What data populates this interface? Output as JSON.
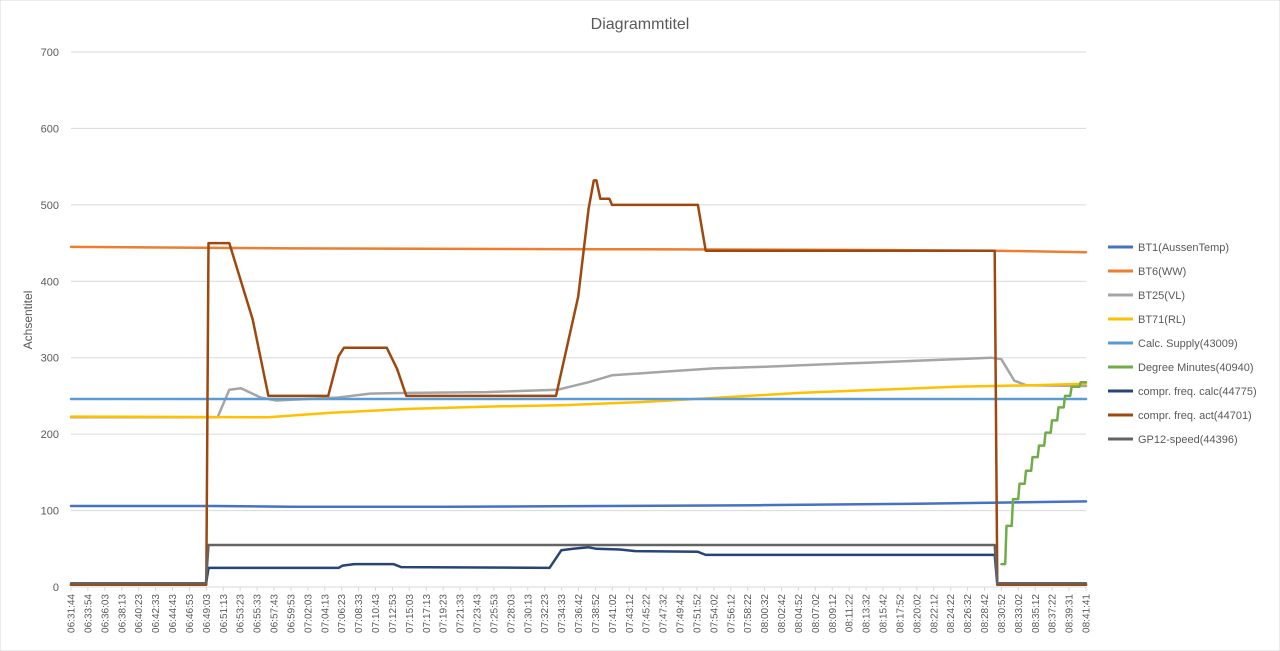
{
  "chart_data": {
    "type": "line",
    "title": "Diagrammtitel",
    "xlabel": "",
    "ylabel": "Achsentitel",
    "ylim": [
      0,
      700
    ],
    "yticks": [
      0,
      100,
      200,
      300,
      400,
      500,
      600,
      700
    ],
    "grid": true,
    "legend": "right",
    "x_start": "06:31:44",
    "x_end": "08:41:41",
    "categories": [
      "06:31:44",
      "06:33:54",
      "06:36:03",
      "06:38:13",
      "06:40:23",
      "06:42:33",
      "06:44:43",
      "06:46:53",
      "06:49:03",
      "06:51:13",
      "06:53:23",
      "06:55:33",
      "06:57:43",
      "06:59:53",
      "07:02:03",
      "07:04:13",
      "07:06:23",
      "07:08:33",
      "07:10:43",
      "07:12:53",
      "07:15:03",
      "07:17:13",
      "07:19:23",
      "07:21:33",
      "07:23:43",
      "07:25:53",
      "07:28:03",
      "07:30:13",
      "07:32:23",
      "07:34:33",
      "07:36:42",
      "07:38:52",
      "07:41:02",
      "07:43:12",
      "07:45:22",
      "07:47:32",
      "07:49:42",
      "07:51:52",
      "07:54:02",
      "07:56:12",
      "07:58:22",
      "08:00:32",
      "08:02:42",
      "08:04:52",
      "08:07:02",
      "08:09:12",
      "08:11:22",
      "08:13:32",
      "08:15:42",
      "08:17:52",
      "08:20:02",
      "08:22:12",
      "08:24:22",
      "08:26:32",
      "08:28:42",
      "08:30:52",
      "08:33:02",
      "08:35:12",
      "08:37:22",
      "08:39:31",
      "08:41:41"
    ],
    "series": [
      {
        "name": "BT1(AussenTemp)",
        "color": "#4472c4",
        "points": [
          [
            "06:31:44",
            106
          ],
          [
            "06:50:00",
            106
          ],
          [
            "07:00:00",
            105
          ],
          [
            "07:20:00",
            105
          ],
          [
            "07:40:00",
            106
          ],
          [
            "08:00:00",
            107
          ],
          [
            "08:20:00",
            109
          ],
          [
            "08:41:41",
            112
          ]
        ]
      },
      {
        "name": "BT6(WW)",
        "color": "#ed7d31",
        "points": [
          [
            "06:31:44",
            445
          ],
          [
            "07:00:00",
            443
          ],
          [
            "07:40:00",
            442
          ],
          [
            "08:10:00",
            441
          ],
          [
            "08:30:00",
            440
          ],
          [
            "08:41:41",
            438
          ]
        ]
      },
      {
        "name": "BT25(VL)",
        "color": "#a5a5a5",
        "points": [
          [
            "06:31:44",
            222
          ],
          [
            "06:49:03",
            222
          ],
          [
            "06:50:30",
            222
          ],
          [
            "06:52:00",
            258
          ],
          [
            "06:53:30",
            260
          ],
          [
            "06:56:00",
            248
          ],
          [
            "06:58:00",
            244
          ],
          [
            "07:02:00",
            246
          ],
          [
            "07:06:00",
            248
          ],
          [
            "07:10:00",
            253
          ],
          [
            "07:15:00",
            254
          ],
          [
            "07:25:00",
            255
          ],
          [
            "07:34:00",
            258
          ],
          [
            "07:38:00",
            268
          ],
          [
            "07:41:00",
            277
          ],
          [
            "07:48:00",
            282
          ],
          [
            "07:54:00",
            286
          ],
          [
            "08:00:00",
            288
          ],
          [
            "08:10:00",
            292
          ],
          [
            "08:20:00",
            296
          ],
          [
            "08:29:30",
            300
          ],
          [
            "08:30:50",
            298
          ],
          [
            "08:32:30",
            270
          ],
          [
            "08:34:00",
            264
          ],
          [
            "08:41:41",
            263
          ]
        ]
      },
      {
        "name": "BT71(RL)",
        "color": "#ffc000",
        "points": [
          [
            "06:31:44",
            223
          ],
          [
            "06:57:00",
            222
          ],
          [
            "07:05:00",
            228
          ],
          [
            "07:15:00",
            233
          ],
          [
            "07:25:00",
            236
          ],
          [
            "07:35:00",
            238
          ],
          [
            "07:45:00",
            242
          ],
          [
            "07:55:00",
            248
          ],
          [
            "08:05:00",
            254
          ],
          [
            "08:15:00",
            258
          ],
          [
            "08:25:00",
            262
          ],
          [
            "08:35:00",
            264
          ],
          [
            "08:41:41",
            266
          ]
        ]
      },
      {
        "name": "Calc. Supply(43009)",
        "color": "#5b9bd5",
        "points": [
          [
            "06:31:44",
            246
          ],
          [
            "08:41:41",
            246
          ]
        ]
      },
      {
        "name": "Degree Minutes(40940)",
        "color": "#70ad47",
        "points": [
          [
            "08:30:52",
            30
          ],
          [
            "08:31:20",
            30
          ],
          [
            "08:31:30",
            80
          ],
          [
            "08:32:10",
            80
          ],
          [
            "08:32:20",
            115
          ],
          [
            "08:33:00",
            115
          ],
          [
            "08:33:10",
            135
          ],
          [
            "08:33:50",
            135
          ],
          [
            "08:34:00",
            152
          ],
          [
            "08:34:40",
            152
          ],
          [
            "08:34:50",
            170
          ],
          [
            "08:35:30",
            170
          ],
          [
            "08:35:40",
            185
          ],
          [
            "08:36:20",
            185
          ],
          [
            "08:36:30",
            202
          ],
          [
            "08:37:10",
            202
          ],
          [
            "08:37:20",
            218
          ],
          [
            "08:38:00",
            218
          ],
          [
            "08:38:10",
            235
          ],
          [
            "08:38:50",
            235
          ],
          [
            "08:39:00",
            250
          ],
          [
            "08:39:40",
            250
          ],
          [
            "08:39:50",
            262
          ],
          [
            "08:40:50",
            262
          ],
          [
            "08:41:00",
            268
          ],
          [
            "08:41:41",
            268
          ]
        ]
      },
      {
        "name": "compr. freq. calc(44775)",
        "color": "#264478",
        "points": [
          [
            "06:31:44",
            3
          ],
          [
            "06:49:00",
            3
          ],
          [
            "06:49:20",
            25
          ],
          [
            "07:06:00",
            25
          ],
          [
            "07:06:30",
            28
          ],
          [
            "07:08:00",
            30
          ],
          [
            "07:13:00",
            30
          ],
          [
            "07:14:00",
            26
          ],
          [
            "07:33:00",
            25
          ],
          [
            "07:34:30",
            48
          ],
          [
            "07:36:00",
            50
          ],
          [
            "07:38:00",
            52
          ],
          [
            "07:39:00",
            50
          ],
          [
            "07:42:00",
            49
          ],
          [
            "07:44:00",
            47
          ],
          [
            "07:52:00",
            46
          ],
          [
            "07:53:00",
            42
          ],
          [
            "08:29:00",
            42
          ],
          [
            "08:30:00",
            42
          ],
          [
            "08:30:20",
            3
          ],
          [
            "08:41:41",
            3
          ]
        ]
      },
      {
        "name": "compr. freq. act(44701)",
        "color": "#9e480e",
        "points": [
          [
            "06:31:44",
            3
          ],
          [
            "06:49:03",
            3
          ],
          [
            "06:49:20",
            450
          ],
          [
            "06:52:00",
            450
          ],
          [
            "06:55:00",
            350
          ],
          [
            "06:57:00",
            250
          ],
          [
            "07:04:40",
            250
          ],
          [
            "07:06:00",
            302
          ],
          [
            "07:06:40",
            313
          ],
          [
            "07:12:10",
            313
          ],
          [
            "07:13:30",
            285
          ],
          [
            "07:14:40",
            250
          ],
          [
            "07:33:50",
            250
          ],
          [
            "07:36:40",
            380
          ],
          [
            "07:38:00",
            495
          ],
          [
            "07:38:40",
            532
          ],
          [
            "07:39:00",
            532
          ],
          [
            "07:39:30",
            508
          ],
          [
            "07:40:40",
            508
          ],
          [
            "07:41:00",
            500
          ],
          [
            "07:52:00",
            500
          ],
          [
            "07:53:00",
            440
          ],
          [
            "08:30:00",
            440
          ],
          [
            "08:30:20",
            3
          ],
          [
            "08:41:41",
            3
          ]
        ]
      },
      {
        "name": "GP12-speed(44396)",
        "color": "#636363",
        "points": [
          [
            "06:31:44",
            5
          ],
          [
            "06:49:00",
            5
          ],
          [
            "06:49:20",
            55
          ],
          [
            "08:30:00",
            55
          ],
          [
            "08:30:20",
            5
          ],
          [
            "08:41:41",
            5
          ]
        ]
      }
    ]
  }
}
